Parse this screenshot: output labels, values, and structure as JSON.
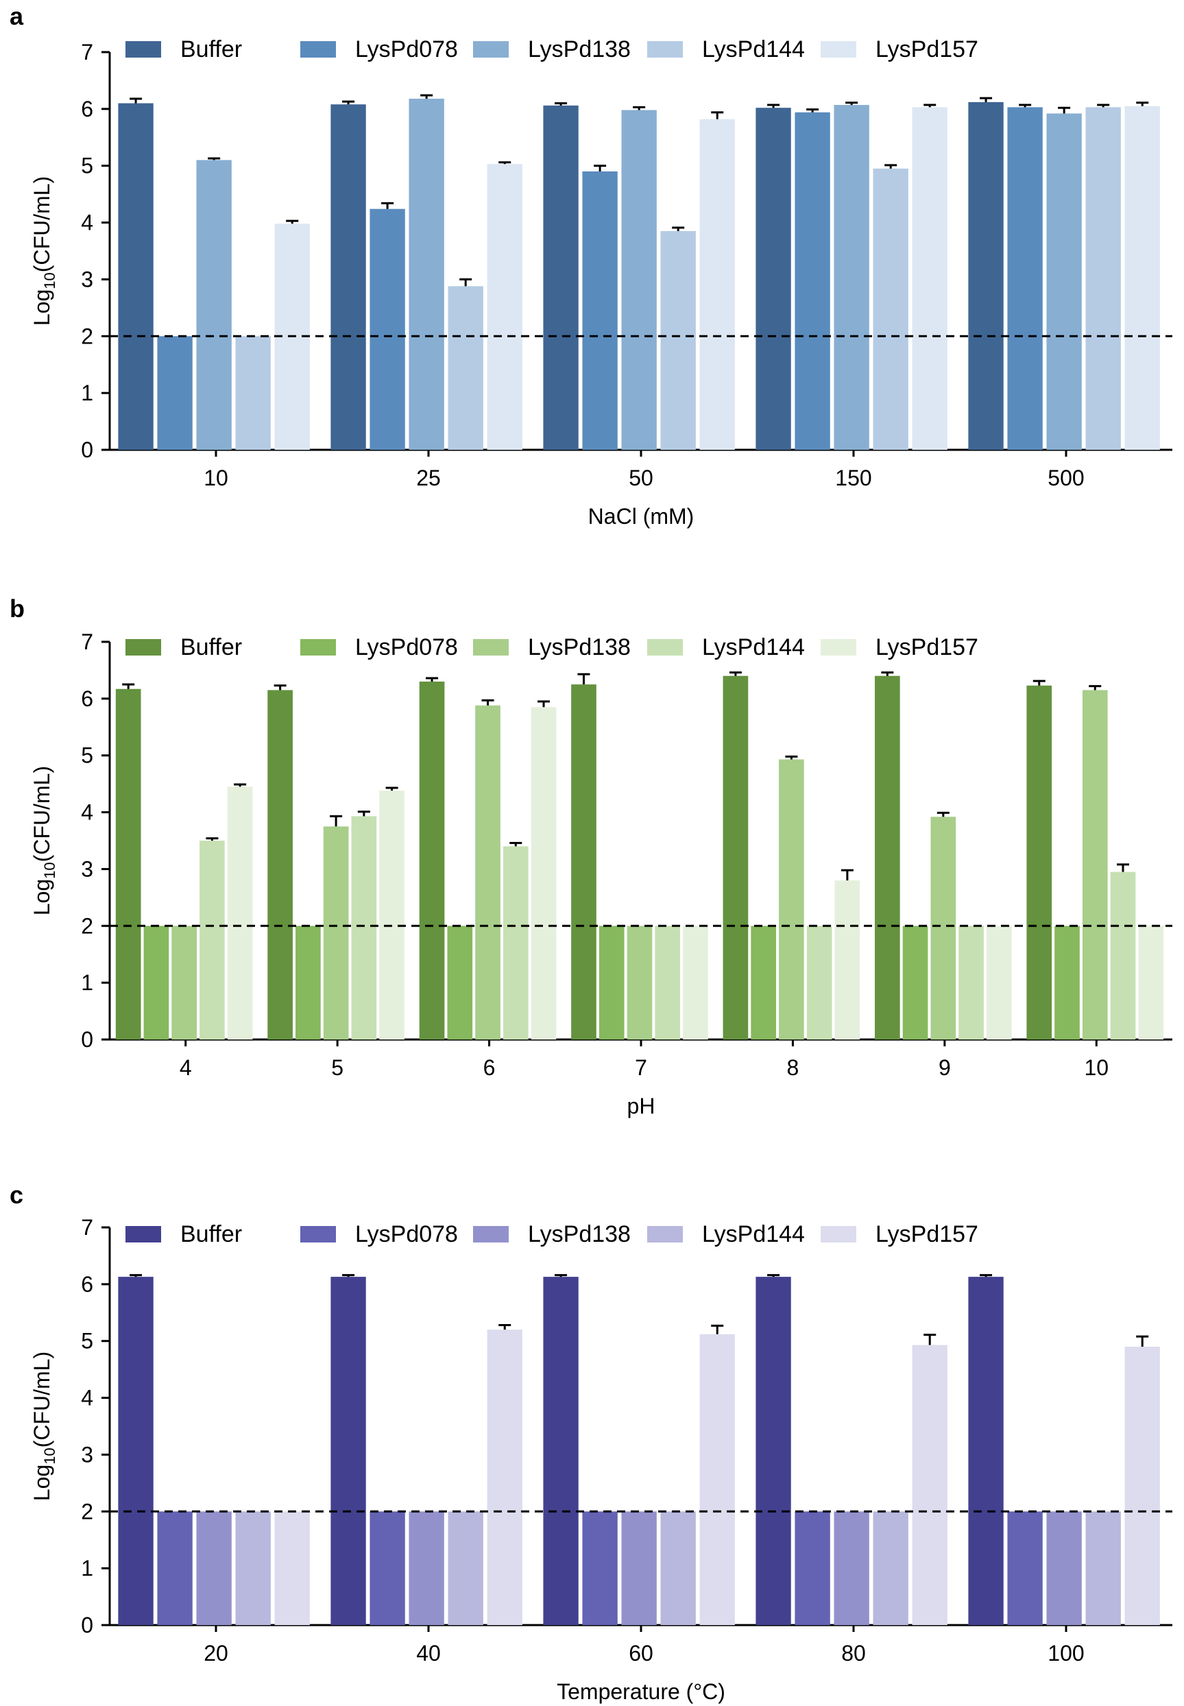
{
  "figure": {
    "dashed_line_value": 2,
    "error_bar_color": "#000000",
    "axis_color": "#000000"
  },
  "chart_data": [
    {
      "panel": "a",
      "type": "bar",
      "title": "",
      "xlabel": "NaCl (mM)",
      "ylabel_prefix": "Log",
      "ylabel_sub": "10",
      "ylabel_suffix": "(CFU/mL)",
      "ylim": [
        0,
        7
      ],
      "yticks": [
        "0",
        "1",
        "2",
        "3",
        "4",
        "5",
        "6",
        "7"
      ],
      "legend_position": "top",
      "categories": [
        "10",
        "25",
        "50",
        "150",
        "500"
      ],
      "series": [
        {
          "name": "Buffer",
          "color": "#3f6593",
          "values": [
            6.1,
            6.08,
            6.06,
            6.02,
            6.12
          ],
          "errors": [
            0.08,
            0.05,
            0.04,
            0.05,
            0.07
          ]
        },
        {
          "name": "LysPd078",
          "color": "#5a8bbd",
          "values": [
            2.0,
            4.24,
            4.9,
            5.94,
            6.03
          ],
          "errors": [
            0,
            0.1,
            0.1,
            0.05,
            0.04
          ]
        },
        {
          "name": "LysPd138",
          "color": "#88aed2",
          "values": [
            5.1,
            6.18,
            5.98,
            6.07,
            5.92
          ],
          "errors": [
            0.03,
            0.06,
            0.05,
            0.04,
            0.1
          ]
        },
        {
          "name": "LysPd144",
          "color": "#b5cbe4",
          "values": [
            2.0,
            2.88,
            3.85,
            4.95,
            6.03
          ],
          "errors": [
            0,
            0.12,
            0.06,
            0.06,
            0.04
          ]
        },
        {
          "name": "LysPd157",
          "color": "#dde7f3",
          "values": [
            3.98,
            5.03,
            5.82,
            6.03,
            6.05
          ],
          "errors": [
            0.05,
            0.03,
            0.12,
            0.04,
            0.06
          ]
        }
      ]
    },
    {
      "panel": "b",
      "type": "bar",
      "title": "",
      "xlabel": "pH",
      "ylabel_prefix": "Log",
      "ylabel_sub": "10",
      "ylabel_suffix": "(CFU/mL)",
      "ylim": [
        0,
        7
      ],
      "yticks": [
        "0",
        "1",
        "2",
        "3",
        "4",
        "5",
        "6",
        "7"
      ],
      "legend_position": "top",
      "categories": [
        "4",
        "5",
        "6",
        "7",
        "8",
        "9",
        "10"
      ],
      "series": [
        {
          "name": "Buffer",
          "color": "#64923e",
          "values": [
            6.17,
            6.15,
            6.3,
            6.25,
            6.4,
            6.4,
            6.23
          ],
          "errors": [
            0.08,
            0.08,
            0.06,
            0.18,
            0.06,
            0.06,
            0.08
          ]
        },
        {
          "name": "LysPd078",
          "color": "#86b85d",
          "values": [
            2.0,
            2.0,
            2.0,
            2.0,
            2.0,
            2.0,
            2.0
          ],
          "errors": [
            0,
            0,
            0,
            0,
            0,
            0,
            0
          ]
        },
        {
          "name": "LysPd138",
          "color": "#a8ce8a",
          "values": [
            2.0,
            3.75,
            5.88,
            2.0,
            4.93,
            3.92,
            6.15
          ],
          "errors": [
            0,
            0.18,
            0.09,
            0,
            0.05,
            0.07,
            0.07
          ]
        },
        {
          "name": "LysPd144",
          "color": "#c7e0b3",
          "values": [
            3.5,
            3.93,
            3.4,
            2.0,
            2.0,
            2.0,
            2.95
          ],
          "errors": [
            0.04,
            0.08,
            0.06,
            0,
            0,
            0,
            0.13
          ]
        },
        {
          "name": "LysPd157",
          "color": "#e5f0dc",
          "values": [
            4.45,
            4.38,
            5.85,
            2.0,
            2.8,
            2.0,
            2.0
          ],
          "errors": [
            0.04,
            0.05,
            0.1,
            0,
            0.18,
            0,
            0
          ]
        }
      ]
    },
    {
      "panel": "c",
      "type": "bar",
      "title": "",
      "xlabel": "Temperature (°C)",
      "ylabel_prefix": "Log",
      "ylabel_sub": "10",
      "ylabel_suffix": "(CFU/mL)",
      "ylim": [
        0,
        7
      ],
      "yticks": [
        "0",
        "1",
        "2",
        "3",
        "4",
        "5",
        "6",
        "7"
      ],
      "legend_position": "top",
      "categories": [
        "20",
        "40",
        "60",
        "80",
        "100"
      ],
      "series": [
        {
          "name": "Buffer",
          "color": "#43418f",
          "values": [
            6.13,
            6.13,
            6.13,
            6.13,
            6.13
          ],
          "errors": [
            0.03,
            0.03,
            0.03,
            0.03,
            0.03
          ]
        },
        {
          "name": "LysPd078",
          "color": "#6462b3",
          "values": [
            2.0,
            2.0,
            2.0,
            2.0,
            2.0
          ],
          "errors": [
            0,
            0,
            0,
            0,
            0
          ]
        },
        {
          "name": "LysPd138",
          "color": "#9391cc",
          "values": [
            2.0,
            2.0,
            2.0,
            2.0,
            2.0
          ],
          "errors": [
            0,
            0,
            0,
            0,
            0
          ]
        },
        {
          "name": "LysPd144",
          "color": "#b8b7dd",
          "values": [
            2.0,
            2.0,
            2.0,
            2.0,
            2.0
          ],
          "errors": [
            0,
            0,
            0,
            0,
            0
          ]
        },
        {
          "name": "LysPd157",
          "color": "#dcdcee",
          "values": [
            2.0,
            5.2,
            5.12,
            4.93,
            4.9
          ],
          "errors": [
            0,
            0.08,
            0.15,
            0.18,
            0.18
          ]
        }
      ]
    }
  ]
}
